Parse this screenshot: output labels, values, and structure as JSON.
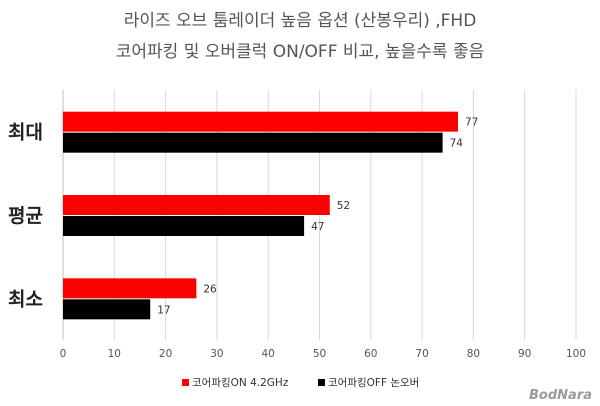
{
  "chart_data": {
    "type": "bar",
    "orientation": "horizontal",
    "title_lines": [
      "라이즈 오브 툼레이더 높음 옵션 (산봉우리) ,FHD",
      "코어파킹 및 오버클럭 ON/OFF 비교, 높을수록 좋음"
    ],
    "categories": [
      "최대",
      "평균",
      "최소"
    ],
    "series": [
      {
        "name": "코어파킹ON 4.2GHz",
        "color": "#ff0000",
        "values": [
          77,
          52,
          26
        ]
      },
      {
        "name": "코어파킹OFF 논오버",
        "color": "#000000",
        "values": [
          74,
          47,
          17
        ]
      }
    ],
    "xlim": [
      0,
      100
    ],
    "x_ticks": [
      0,
      10,
      20,
      30,
      40,
      50,
      60,
      70,
      80,
      90,
      100
    ],
    "grid": true,
    "legend_position": "bottom"
  },
  "watermark": "BodNara",
  "colors": {
    "gridline": "#d9d9d9",
    "axis": "#bfbfbf"
  }
}
